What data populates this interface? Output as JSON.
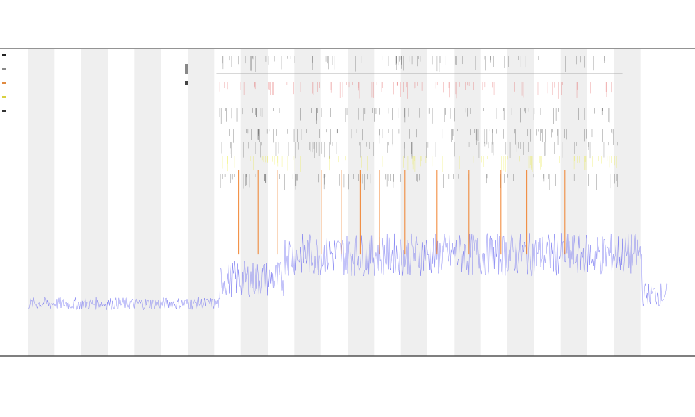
{
  "chart_data": {
    "type": "line",
    "title": "",
    "subtitle_lines": [
      "",
      ""
    ],
    "xlabel": "",
    "ylabel": "",
    "legend_position": "top-left",
    "grid": false,
    "background_bands": "alternating-gray",
    "series": [
      {
        "name": "",
        "color": "#6a6af0",
        "description_only": false,
        "segments": [
          {
            "x_start": 0,
            "x_end": 0.3,
            "y_level": 0.17,
            "noise": 0.02
          },
          {
            "x_start": 0.3,
            "x_end": 0.4,
            "y_level": 0.25,
            "noise": 0.06
          },
          {
            "x_start": 0.4,
            "x_end": 0.96,
            "y_level": 0.33,
            "noise": 0.07
          },
          {
            "x_start": 0.96,
            "x_end": 1.0,
            "y_level": 0.2,
            "noise": 0.04
          }
        ]
      },
      {
        "name": "",
        "color": "#f07a20",
        "spikes_at": [
          0.33,
          0.36,
          0.39,
          0.46,
          0.49,
          0.52,
          0.55,
          0.59,
          0.64,
          0.69,
          0.74,
          0.78,
          0.84
        ]
      }
    ],
    "event_rows": [
      {
        "color": "#444444"
      },
      {
        "color": "#e05050"
      },
      {
        "color": "#222222"
      },
      {
        "color": "#333333"
      },
      {
        "color": "#555555"
      },
      {
        "color": "#e8e830"
      },
      {
        "color": "#333333"
      }
    ]
  }
}
